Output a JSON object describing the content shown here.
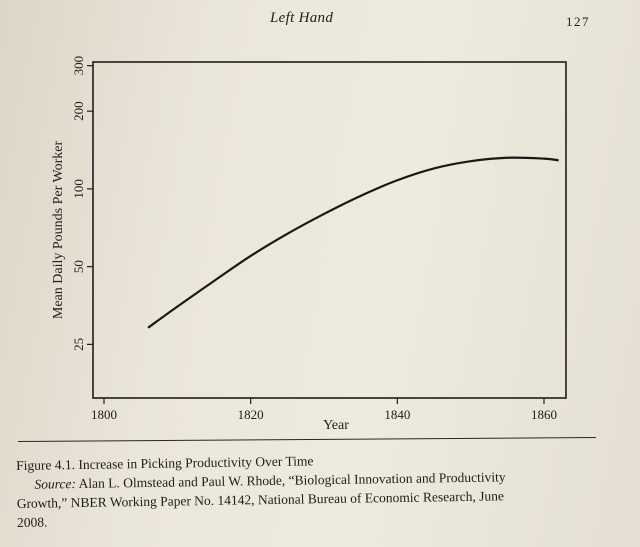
{
  "header": {
    "running_head": "Left Hand",
    "page_number": "127"
  },
  "caption": {
    "figure_title": "Figure 4.1. Increase in Picking Productivity Over Time",
    "source_label": "Source:",
    "source_line1": " Alan L. Olmstead and Paul W. Rhode, “Biological Innovation and Productivity",
    "source_line2": "Growth,” NBER Working Paper No. 14142, National Bureau of Economic Research, June",
    "source_line3": "2008."
  },
  "chart_data": {
    "type": "line",
    "xlabel": "Year",
    "ylabel": "Mean Daily Pounds Per Worker",
    "x_ticks": [
      1800,
      1820,
      1840,
      1860
    ],
    "y_ticks": [
      25,
      50,
      100,
      200,
      300
    ],
    "y_scale": "log",
    "xlim": [
      1798.5,
      1863
    ],
    "ylim": [
      15.5,
      310
    ],
    "grid": false,
    "series": [
      {
        "x": [
          1806,
          1810,
          1815,
          1820,
          1825,
          1830,
          1835,
          1840,
          1845,
          1850,
          1855,
          1860,
          1862
        ],
        "y": [
          29,
          35,
          44,
          55,
          67,
          80,
          94,
          108,
          120,
          128,
          132,
          131,
          129
        ]
      }
    ]
  }
}
